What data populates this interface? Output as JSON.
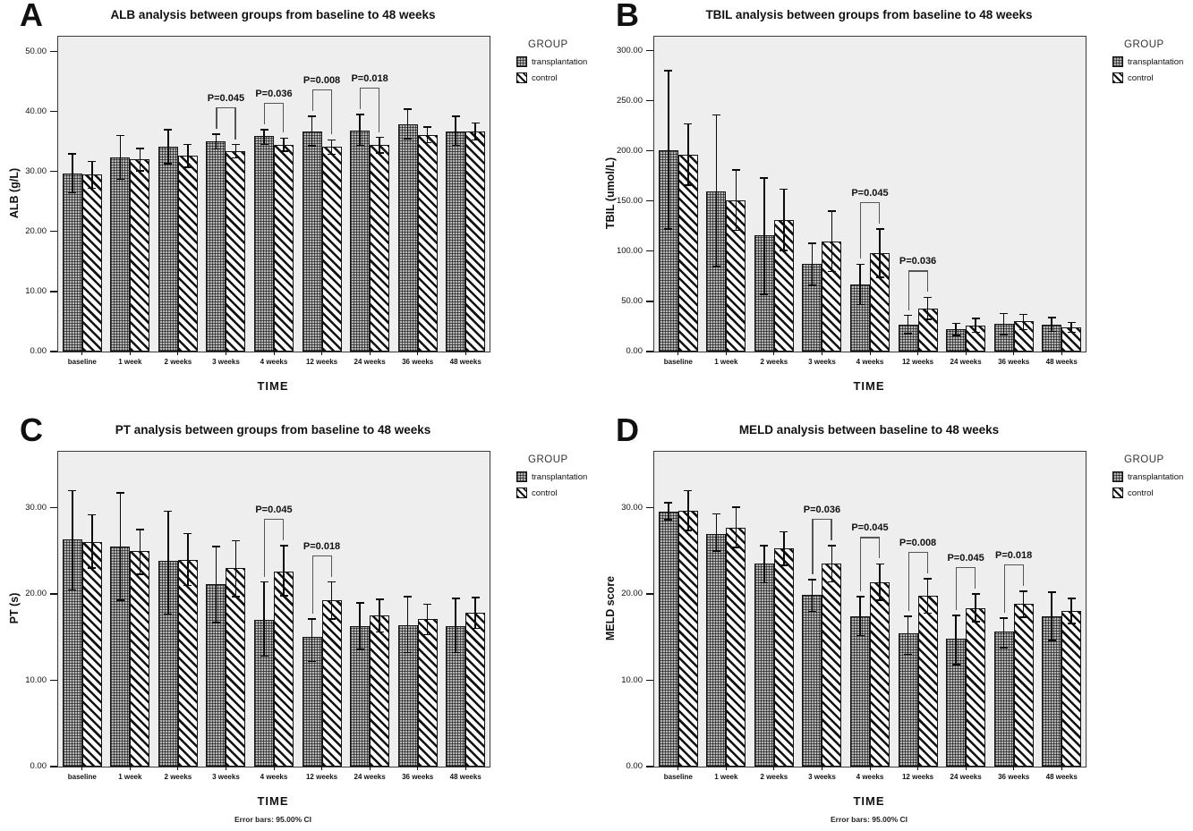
{
  "legend": {
    "title": "GROUP",
    "items": [
      {
        "label": "transplantation",
        "pattern": "grid-crosshatch"
      },
      {
        "label": "control",
        "pattern": "diagonal-stripes"
      }
    ]
  },
  "chart_data": [
    {
      "panel_label": "A",
      "type": "bar",
      "title": "ALB analysis between groups from baseline to 48 weeks",
      "xlabel": "TIME",
      "ylabel": "ALB (g/L)",
      "footer": "",
      "ylim": [
        0,
        52.5
      ],
      "yticks": [
        0,
        10,
        20,
        30,
        40,
        50
      ],
      "ytick_labels": [
        "0.00",
        "10.00",
        "20.00",
        "30.00",
        "40.00",
        "50.00"
      ],
      "categories": [
        "baseline",
        "1 week",
        "2 weeks",
        "3 weeks",
        "4 weeks",
        "12 weeks",
        "24 weeks",
        "36 weeks",
        "48 weeks"
      ],
      "series": [
        {
          "name": "transplantation",
          "values": [
            29.7,
            32.3,
            34.2,
            35.0,
            35.9,
            36.7,
            36.9,
            37.9,
            36.7
          ],
          "ci_low": [
            26.5,
            28.7,
            31.3,
            33.8,
            34.5,
            34.3,
            34.4,
            35.5,
            34.4
          ],
          "ci_high": [
            33.0,
            36.0,
            37.0,
            36.2,
            37.0,
            39.2,
            39.5,
            40.4,
            39.2
          ]
        },
        {
          "name": "control",
          "values": [
            29.5,
            32.0,
            32.6,
            33.4,
            34.5,
            34.1,
            34.4,
            36.1,
            36.7
          ],
          "ci_low": [
            27.2,
            30.1,
            30.7,
            32.3,
            33.4,
            32.9,
            33.1,
            34.8,
            35.3
          ],
          "ci_high": [
            31.7,
            33.9,
            34.5,
            34.5,
            35.6,
            35.3,
            35.7,
            37.4,
            38.1
          ]
        }
      ],
      "annotations": [
        {
          "category": "3 weeks",
          "text": "P=0.045"
        },
        {
          "category": "4 weeks",
          "text": "P=0.036"
        },
        {
          "category": "12 weeks",
          "text": "P=0.008"
        },
        {
          "category": "24 weeks",
          "text": "P=0.018"
        }
      ]
    },
    {
      "panel_label": "B",
      "type": "bar",
      "title": "TBIL analysis between groups from baseline to 48 weeks",
      "xlabel": "TIME",
      "ylabel": "TBIL (umol/L)",
      "footer": "",
      "ylim": [
        0,
        314
      ],
      "yticks": [
        0,
        50,
        100,
        150,
        200,
        250,
        300
      ],
      "ytick_labels": [
        "0.00",
        "50.00",
        "100.00",
        "150.00",
        "200.00",
        "250.00",
        "300.00"
      ],
      "categories": [
        "baseline",
        "1 week",
        "2 weeks",
        "3 weeks",
        "4 weeks",
        "12 weeks",
        "24 weeks",
        "36 weeks",
        "48 weeks"
      ],
      "series": [
        {
          "name": "transplantation",
          "values": [
            201,
            160,
            116,
            87,
            67,
            27,
            22,
            28,
            27
          ],
          "ci_low": [
            122,
            85,
            57,
            66,
            47,
            18,
            16,
            17,
            20
          ],
          "ci_high": [
            280,
            236,
            173,
            108,
            87,
            36,
            28,
            38,
            34
          ]
        },
        {
          "name": "control",
          "values": [
            196,
            151,
            131,
            110,
            98,
            43,
            26,
            30,
            24
          ],
          "ci_low": [
            166,
            121,
            101,
            80,
            74,
            32,
            19,
            22,
            19
          ],
          "ci_high": [
            227,
            181,
            162,
            140,
            122,
            54,
            33,
            37,
            29
          ]
        }
      ],
      "annotations": [
        {
          "category": "4 weeks",
          "text": "P=0.045"
        },
        {
          "category": "12 weeks",
          "text": "P=0.036"
        }
      ]
    },
    {
      "panel_label": "C",
      "type": "bar",
      "title": "PT analysis between groups from baseline to 48 weeks",
      "xlabel": "TIME",
      "ylabel": "PT (s)",
      "footer": "Error bars: 95.00% CI",
      "ylim": [
        0,
        36.5
      ],
      "yticks": [
        0,
        10,
        20,
        30
      ],
      "ytick_labels": [
        "0.00",
        "10.00",
        "20.00",
        "30.00"
      ],
      "categories": [
        "baseline",
        "1 week",
        "2 weeks",
        "3 weeks",
        "4 weeks",
        "12 weeks",
        "24 weeks",
        "36 weeks",
        "48 weeks"
      ],
      "series": [
        {
          "name": "transplantation",
          "values": [
            26.3,
            25.5,
            23.8,
            21.2,
            17.0,
            15.0,
            16.3,
            16.4,
            16.3
          ],
          "ci_low": [
            20.5,
            19.3,
            17.7,
            16.7,
            12.8,
            12.2,
            13.6,
            13.2,
            13.2
          ],
          "ci_high": [
            32.0,
            31.7,
            29.6,
            25.5,
            21.4,
            17.1,
            19.0,
            19.7,
            19.5
          ]
        },
        {
          "name": "control",
          "values": [
            26.0,
            25.0,
            24.0,
            23.0,
            22.6,
            19.3,
            17.5,
            17.1,
            17.8
          ],
          "ci_low": [
            23.0,
            22.3,
            21.0,
            19.7,
            19.8,
            17.1,
            15.6,
            15.3,
            16.0
          ],
          "ci_high": [
            29.2,
            27.5,
            27.0,
            26.2,
            25.6,
            21.4,
            19.4,
            18.8,
            19.6
          ]
        }
      ],
      "annotations": [
        {
          "category": "4 weeks",
          "text": "P=0.045"
        },
        {
          "category": "12 weeks",
          "text": "P=0.018"
        }
      ]
    },
    {
      "panel_label": "D",
      "type": "bar",
      "title": "MELD analysis between baseline to 48 weeks",
      "xlabel": "TIME",
      "ylabel": "MELD score",
      "footer": "Error bars: 95.00% CI",
      "ylim": [
        0,
        36.5
      ],
      "yticks": [
        0,
        10,
        20,
        30
      ],
      "ytick_labels": [
        "0.00",
        "10.00",
        "20.00",
        "30.00"
      ],
      "categories": [
        "baseline",
        "1 week",
        "2 weeks",
        "3 weeks",
        "4 weeks",
        "12 weeks",
        "24 weeks",
        "36 weeks",
        "48 weeks"
      ],
      "series": [
        {
          "name": "transplantation",
          "values": [
            29.6,
            27.0,
            23.5,
            19.9,
            17.4,
            15.5,
            14.8,
            15.7,
            17.4
          ],
          "ci_low": [
            28.6,
            25.0,
            21.3,
            18.0,
            15.2,
            13.0,
            11.8,
            13.8,
            14.6
          ],
          "ci_high": [
            30.6,
            29.3,
            25.6,
            21.7,
            19.7,
            17.4,
            17.5,
            17.2,
            20.2
          ]
        },
        {
          "name": "control",
          "values": [
            29.7,
            27.7,
            25.3,
            23.5,
            21.4,
            19.8,
            18.4,
            18.9,
            18.0
          ],
          "ci_low": [
            27.4,
            25.4,
            23.3,
            21.4,
            19.3,
            17.8,
            16.8,
            17.3,
            16.6
          ],
          "ci_high": [
            32.0,
            30.1,
            27.2,
            25.6,
            23.5,
            21.8,
            20.0,
            20.3,
            19.5
          ]
        }
      ],
      "annotations": [
        {
          "category": "3 weeks",
          "text": "P=0.036"
        },
        {
          "category": "4 weeks",
          "text": "P=0.045"
        },
        {
          "category": "12 weeks",
          "text": "P=0.008"
        },
        {
          "category": "24 weeks",
          "text": "P=0.045"
        },
        {
          "category": "36 weeks",
          "text": "P=0.018"
        }
      ]
    }
  ]
}
